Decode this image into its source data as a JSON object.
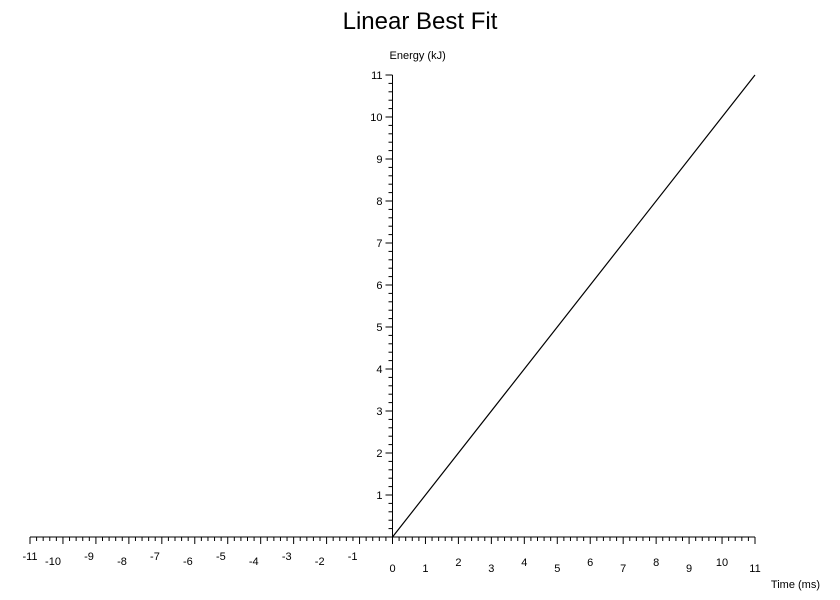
{
  "chart_data": {
    "type": "line",
    "title": "Linear Best Fit",
    "xlabel": "Time (ms)",
    "ylabel": "Energy (kJ)",
    "xlim": [
      -11,
      11
    ],
    "ylim": [
      0,
      11
    ],
    "x_ticks": [
      -11,
      -10,
      -9,
      -8,
      -7,
      -6,
      -5,
      -4,
      -3,
      -2,
      -1,
      0,
      1,
      2,
      3,
      4,
      5,
      6,
      7,
      8,
      9,
      10,
      11
    ],
    "y_ticks": [
      1,
      2,
      3,
      4,
      5,
      6,
      7,
      8,
      9,
      10,
      11
    ],
    "minor_ticks_per_major": 5,
    "grid": false,
    "series": [
      {
        "x": [
          0,
          11
        ],
        "y": [
          0,
          11
        ],
        "color": "#000000"
      }
    ]
  }
}
